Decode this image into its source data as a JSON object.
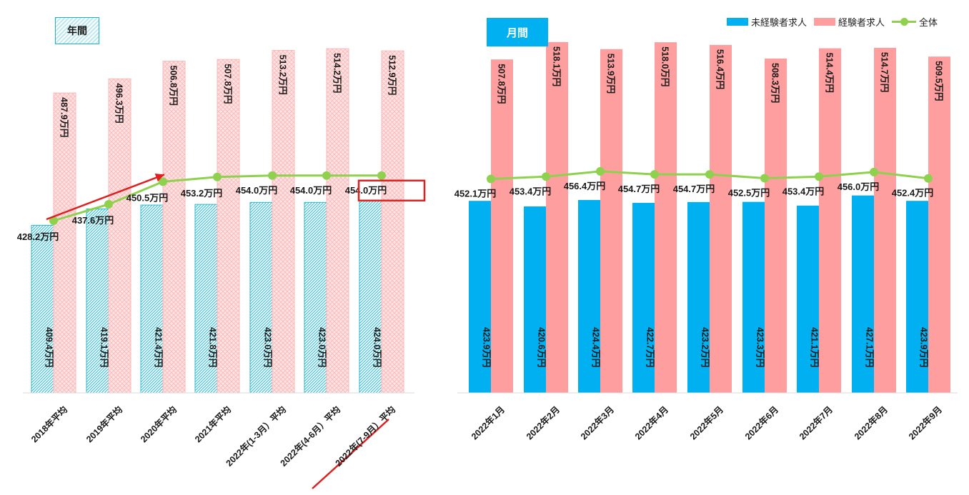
{
  "tags": {
    "annual": "年間",
    "monthly": "月間"
  },
  "legend": [
    {
      "label": "未経験者求人",
      "color": "#00b0f0"
    },
    {
      "label": "経験者求人",
      "color": "#ff9e9e"
    },
    {
      "label": "全体",
      "color": "#8fd14f"
    }
  ],
  "highlight_label": "454.0万円",
  "chart_data": {
    "type": "bar",
    "categories": [
      "2018年平均",
      "2019年平均",
      "2020年平均",
      "2021年平均",
      "2022年(1-3月）平均",
      "2022年(4-6月）平均",
      "2022年(7-9月）平均",
      "2022年1月",
      "2022年2月",
      "2022年3月",
      "2022年4月",
      "2022年5月",
      "2022年6月",
      "2022年7月",
      "2022年8月",
      "2022年9月"
    ],
    "series": [
      {
        "name": "未経験者求人",
        "type": "bar",
        "values": [
          409.4,
          419.1,
          421.4,
          421.8,
          423.0,
          423.0,
          424.0,
          423.9,
          420.6,
          424.4,
          422.7,
          423.2,
          423.3,
          421.1,
          427.1,
          423.9
        ],
        "labels": [
          "409.4万円",
          "419.1万円",
          "421.4万円",
          "421.8万円",
          "423.0万円",
          "423.0万円",
          "424.0万円",
          "423.9万円",
          "420.6万円",
          "424.4万円",
          "422.7万円",
          "423.2万円",
          "423.3万円",
          "421.1万円",
          "427.1万円",
          "423.9万円"
        ]
      },
      {
        "name": "経験者求人",
        "type": "bar",
        "values": [
          487.9,
          496.3,
          506.8,
          507.8,
          513.2,
          514.2,
          512.9,
          507.8,
          518.1,
          513.9,
          518.0,
          516.4,
          508.3,
          514.4,
          514.7,
          509.5
        ],
        "labels": [
          "487.9万円",
          "496.3万円",
          "506.8万円",
          "507.8万円",
          "513.2万円",
          "514.2万円",
          "512.9万円",
          "507.8万円",
          "518.1万円",
          "513.9万円",
          "518.0万円",
          "516.4万円",
          "508.3万円",
          "514.4万円",
          "514.7万円",
          "509.5万円"
        ]
      },
      {
        "name": "全体",
        "type": "line",
        "values": [
          428.2,
          437.6,
          450.5,
          453.2,
          454.0,
          454.0,
          454.0,
          452.1,
          453.4,
          456.4,
          454.7,
          454.7,
          452.5,
          453.4,
          456.0,
          452.4
        ],
        "labels": [
          "428.2万円",
          "437.6万円",
          "450.5万円",
          "453.2万円",
          "454.0万円",
          "454.0万円",
          "454.0万円",
          "452.1万円",
          "453.4万円",
          "456.4万円",
          "454.7万円",
          "454.7万円",
          "452.5万円",
          "453.4万円",
          "456.0万円",
          "452.4万円"
        ]
      }
    ],
    "annual_group": [
      "2018年平均",
      "2019年平均",
      "2020年平均",
      "2021年平均",
      "2022年(1-3月）平均",
      "2022年(4-6月）平均",
      "2022年(7-9月）平均"
    ],
    "monthly_group": [
      "2022年1月",
      "2022年2月",
      "2022年3月",
      "2022年4月",
      "2022年5月",
      "2022年6月",
      "2022年7月",
      "2022年8月",
      "2022年9月"
    ],
    "legend_position": "top-right",
    "grid": false
  }
}
